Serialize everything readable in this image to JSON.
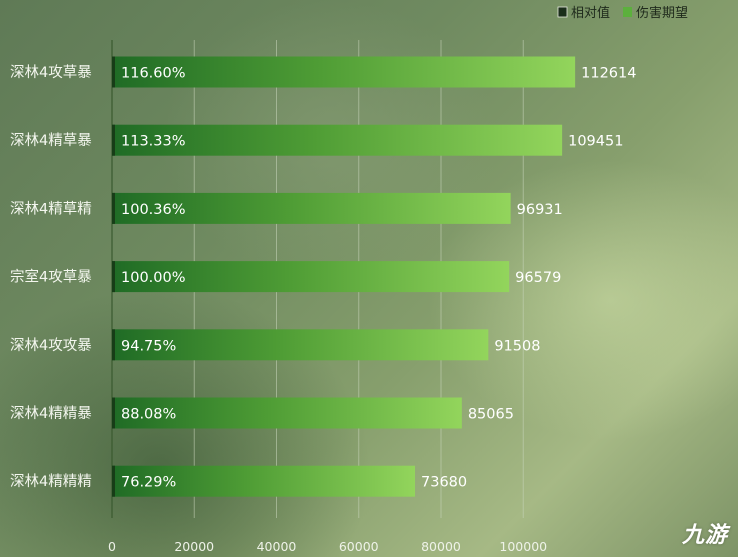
{
  "chart_data": {
    "type": "bar",
    "orientation": "horizontal",
    "title": "",
    "legend": {
      "placement": "top-right",
      "items": [
        {
          "name": "相对值",
          "color": "#1a2d1a"
        },
        {
          "name": "伤害期望",
          "color": "#5cb03d"
        }
      ]
    },
    "categories": [
      "深林4攻草暴",
      "深林4精草暴",
      "深林4精草精",
      "宗室4攻草暴",
      "深林4攻攻暴",
      "深林4精精暴",
      "深林4精精精"
    ],
    "series": [
      {
        "name": "伤害期望",
        "values": [
          112614,
          109451,
          96931,
          96579,
          91508,
          85065,
          73680
        ]
      },
      {
        "name": "相对值",
        "values": [
          "116.60%",
          "113.33%",
          "100.36%",
          "100.00%",
          "94.75%",
          "88.08%",
          "76.29%"
        ]
      }
    ],
    "xlim": [
      0,
      120000
    ],
    "xticks": [
      "0",
      "20000",
      "40000",
      "60000",
      "80000",
      "100000"
    ],
    "grid": true,
    "colors": {
      "bar_start": "#1f6b25",
      "bar_end": "#93d55c",
      "grid": "#c9d6bb"
    }
  },
  "watermark": "九游"
}
